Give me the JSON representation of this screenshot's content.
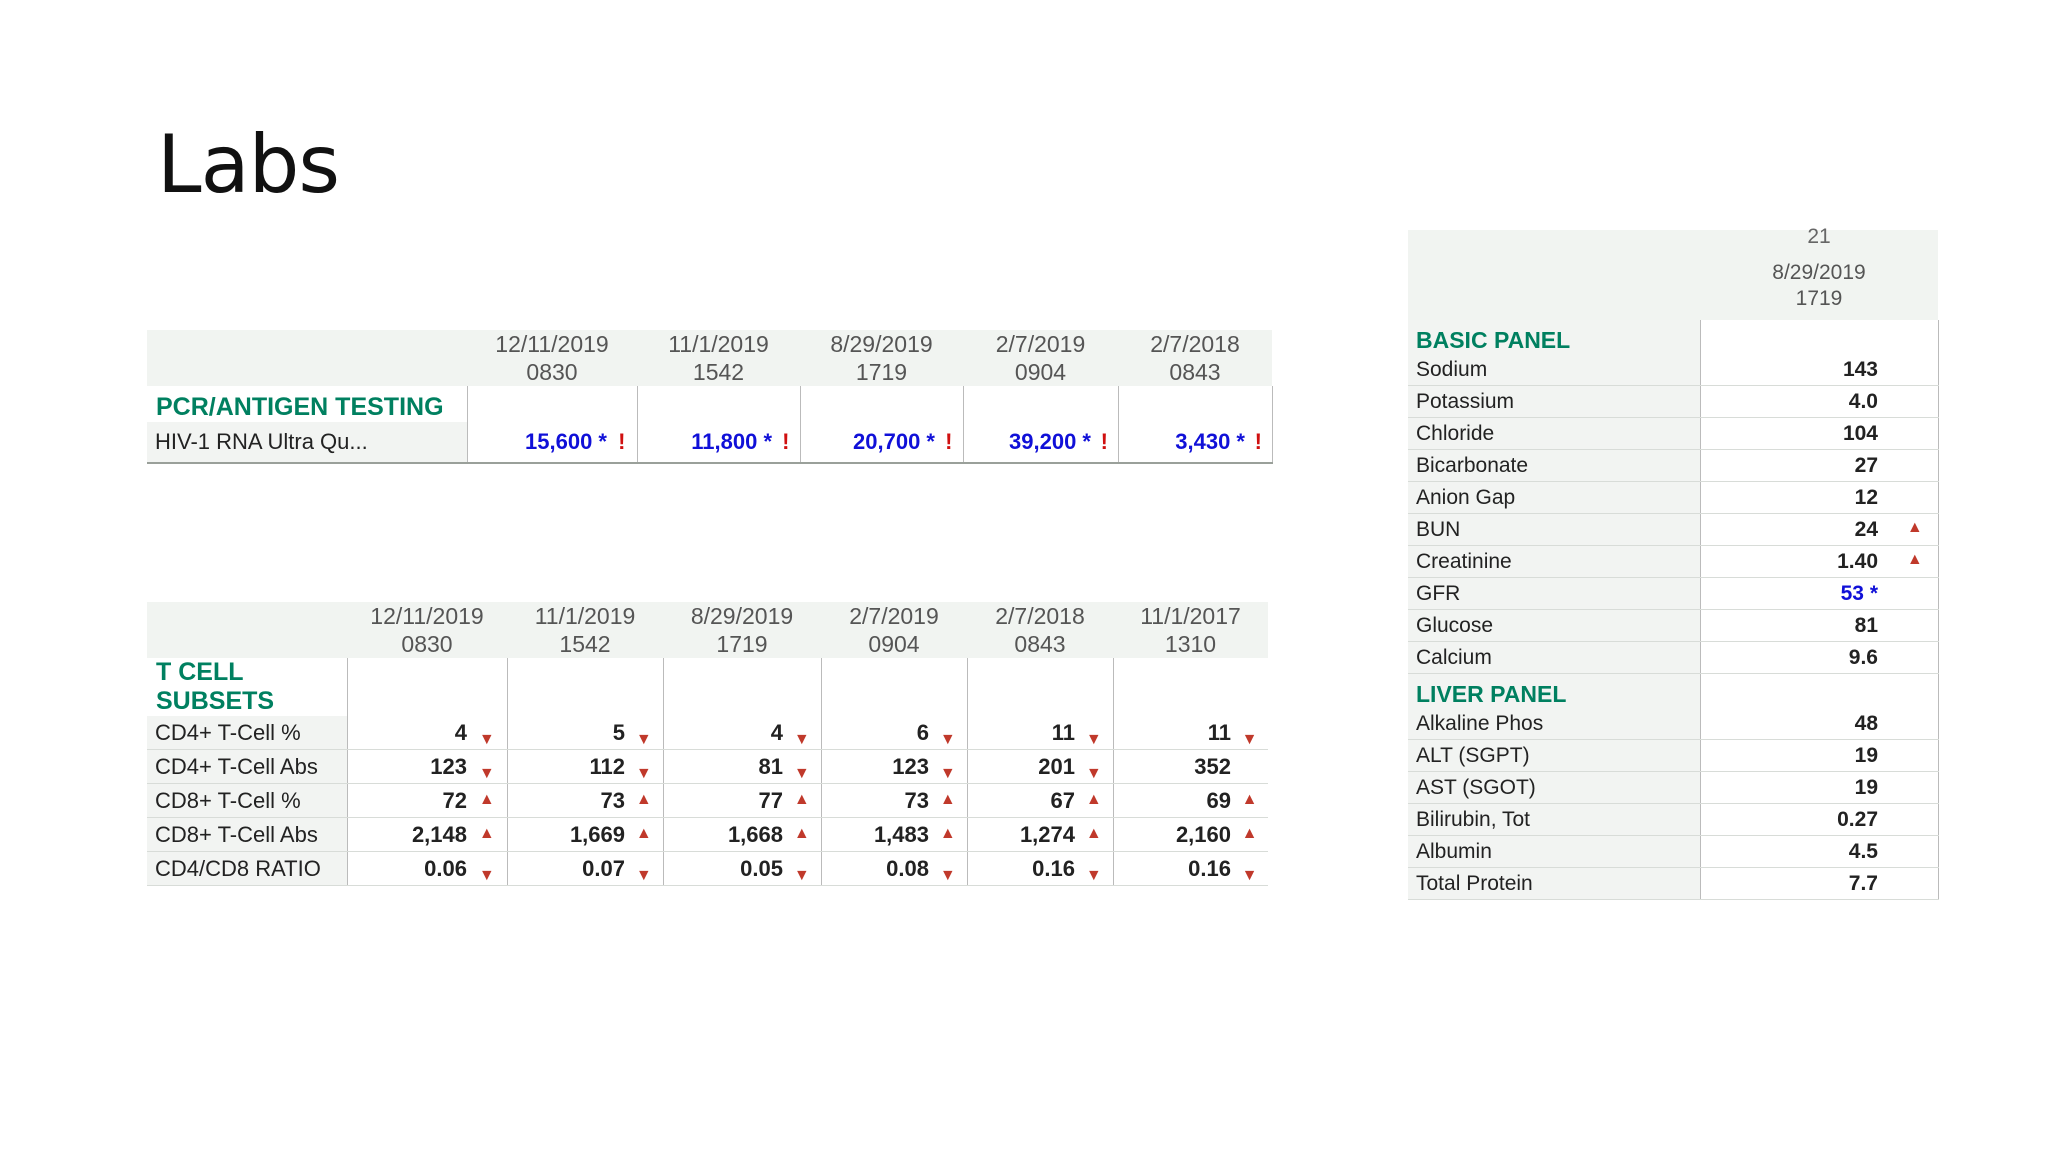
{
  "slide": {
    "title": "Labs"
  },
  "pcr_table": {
    "columns": [
      {
        "date": "12/11/2019",
        "time": "0830"
      },
      {
        "date": "11/1/2019",
        "time": "1542"
      },
      {
        "date": "8/29/2019",
        "time": "1719"
      },
      {
        "date": "2/7/2019",
        "time": "0904"
      },
      {
        "date": "2/7/2018",
        "time": "0843"
      }
    ],
    "section": "PCR/ANTIGEN TESTING",
    "rows": [
      {
        "label": "HIV-1 RNA Ultra Qu...",
        "values": [
          "15,600 *",
          "11,800 *",
          "20,700 *",
          "39,200 *",
          "3,430 *"
        ],
        "flag": "!"
      }
    ]
  },
  "tcell_table": {
    "columns": [
      {
        "date": "12/11/2019",
        "time": "0830"
      },
      {
        "date": "11/1/2019",
        "time": "1542"
      },
      {
        "date": "8/29/2019",
        "time": "1719"
      },
      {
        "date": "2/7/2019",
        "time": "0904"
      },
      {
        "date": "2/7/2018",
        "time": "0843"
      },
      {
        "date": "11/1/2017",
        "time": "1310"
      }
    ],
    "section": "T CELL SUBSETS",
    "rows": [
      {
        "label": "CD4+ T-Cell %",
        "values": [
          "4",
          "5",
          "4",
          "6",
          "11",
          "11"
        ],
        "flags": [
          "down",
          "down",
          "down",
          "down",
          "down",
          "down"
        ]
      },
      {
        "label": "CD4+ T-Cell Abs",
        "values": [
          "123",
          "112",
          "81",
          "123",
          "201",
          "352"
        ],
        "flags": [
          "down",
          "down",
          "down",
          "down",
          "down",
          ""
        ]
      },
      {
        "label": "CD8+ T-Cell %",
        "values": [
          "72",
          "73",
          "77",
          "73",
          "67",
          "69"
        ],
        "flags": [
          "up",
          "up",
          "up",
          "up",
          "up",
          "up"
        ]
      },
      {
        "label": "CD8+ T-Cell Abs",
        "values": [
          "2,148",
          "1,669",
          "1,668",
          "1,483",
          "1,274",
          "2,160"
        ],
        "flags": [
          "up",
          "up",
          "up",
          "up",
          "up",
          "up"
        ]
      },
      {
        "label": "CD4/CD8 RATIO",
        "values": [
          "0.06",
          "0.07",
          "0.05",
          "0.08",
          "0.16",
          "0.16"
        ],
        "flags": [
          "down",
          "down",
          "down",
          "down",
          "down",
          "down"
        ]
      }
    ]
  },
  "chem_table": {
    "clipped_text": "21",
    "column": {
      "date": "8/29/2019",
      "time": "1719"
    },
    "sections": [
      {
        "name": "BASIC PANEL",
        "rows": [
          {
            "label": "Sodium",
            "value": "143",
            "flag": ""
          },
          {
            "label": "Potassium",
            "value": "4.0",
            "flag": ""
          },
          {
            "label": "Chloride",
            "value": "104",
            "flag": ""
          },
          {
            "label": "Bicarbonate",
            "value": "27",
            "flag": ""
          },
          {
            "label": "Anion Gap",
            "value": "12",
            "flag": ""
          },
          {
            "label": "BUN",
            "value": "24",
            "flag": "up"
          },
          {
            "label": "Creatinine",
            "value": "1.40",
            "flag": "up"
          },
          {
            "label": "GFR",
            "value": "53 *",
            "flag": "",
            "blue": true
          },
          {
            "label": "Glucose",
            "value": "81",
            "flag": ""
          },
          {
            "label": "Calcium",
            "value": "9.6",
            "flag": ""
          }
        ]
      },
      {
        "name": "LIVER PANEL",
        "rows": [
          {
            "label": "Alkaline Phos",
            "value": "48",
            "flag": ""
          },
          {
            "label": "ALT (SGPT)",
            "value": "19",
            "flag": ""
          },
          {
            "label": "AST (SGOT)",
            "value": "19",
            "flag": ""
          },
          {
            "label": "Bilirubin, Tot",
            "value": "0.27",
            "flag": ""
          },
          {
            "label": "Albumin",
            "value": "4.5",
            "flag": ""
          },
          {
            "label": "Total Protein",
            "value": "7.7",
            "flag": ""
          }
        ]
      }
    ]
  },
  "icons": {
    "up": "triangle-up-icon",
    "down": "triangle-down-icon",
    "alert": "exclamation-icon"
  },
  "colors": {
    "section": "#008060",
    "flag": "#c0392b",
    "link_value": "#1010d8"
  }
}
